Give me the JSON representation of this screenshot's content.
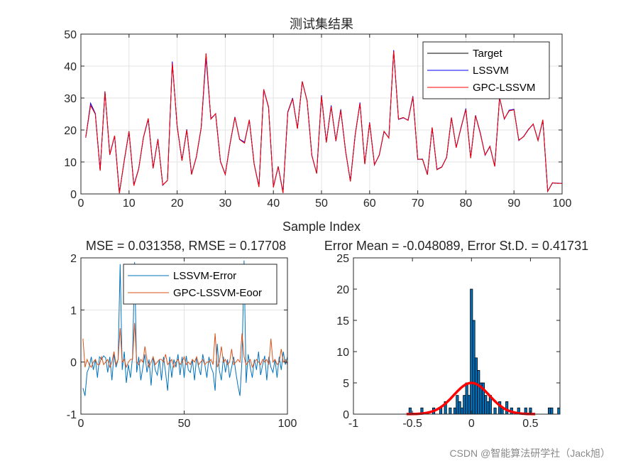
{
  "chart_data": [
    {
      "type": "line",
      "title": "测试集结果",
      "xlabel": "Sample Index",
      "ylabel": "",
      "xlim": [
        0,
        100
      ],
      "ylim": [
        0,
        50
      ],
      "xticks": [
        "0",
        "10",
        "20",
        "30",
        "40",
        "50",
        "60",
        "70",
        "80",
        "90",
        "100"
      ],
      "yticks": [
        "0",
        "10",
        "20",
        "30",
        "40",
        "50"
      ],
      "grid": true,
      "legend_position": "top-right",
      "x": [
        1,
        2,
        3,
        4,
        5,
        6,
        7,
        8,
        9,
        10,
        11,
        12,
        13,
        14,
        15,
        16,
        17,
        18,
        19,
        20,
        21,
        22,
        23,
        24,
        25,
        26,
        27,
        28,
        29,
        30,
        31,
        32,
        33,
        34,
        35,
        36,
        37,
        38,
        39,
        40,
        41,
        42,
        43,
        44,
        45,
        46,
        47,
        48,
        49,
        50,
        51,
        52,
        53,
        54,
        55,
        56,
        57,
        58,
        59,
        60,
        61,
        62,
        63,
        64,
        65,
        66,
        67,
        68,
        69,
        70,
        71,
        72,
        73,
        74,
        75,
        76,
        77,
        78,
        79,
        80,
        81,
        82,
        83,
        84,
        85,
        86,
        87,
        88,
        89,
        90,
        91,
        92,
        93,
        94,
        95,
        96,
        97,
        98,
        99,
        100
      ],
      "series": [
        {
          "name": "Target",
          "color": "#000000",
          "values": [
            17.7,
            27.8,
            25.0,
            7.3,
            32.0,
            12.3,
            18.2,
            0.2,
            10.4,
            19.6,
            2.6,
            7.8,
            17.7,
            23.6,
            8.0,
            17.1,
            2.8,
            4.2,
            41.0,
            21.3,
            10.4,
            20.0,
            6.1,
            11.6,
            20.8,
            43.8,
            23.4,
            25.1,
            10.2,
            6.1,
            15.8,
            24.0,
            17.0,
            15.9,
            23.2,
            9.3,
            2.2,
            32.7,
            27.2,
            2.1,
            8.6,
            0.3,
            25.5,
            29.8,
            20.4,
            35.2,
            29.1,
            12.1,
            6.4,
            30.7,
            16.1,
            27.4,
            16.6,
            26.2,
            13.5,
            3.9,
            18.5,
            28.4,
            9.3,
            22.2,
            9.1,
            12.2,
            19.6,
            17.5,
            44.7,
            23.4,
            23.9,
            23.0,
            30.4,
            10.9,
            10.8,
            6.0,
            20.8,
            7.6,
            8.4,
            11.5,
            23.9,
            14.5,
            20.8,
            26.5,
            11.2,
            24.5,
            19.0,
            12.2,
            14.9,
            8.6,
            30.1,
            23.5,
            26.0,
            26.4,
            16.8,
            17.9,
            20.1,
            21.9,
            16.7,
            23.2,
            0.8,
            3.5,
            3.3,
            3.3
          ]
        },
        {
          "name": "LSSVM",
          "color": "#0000ff",
          "values": [
            17.6,
            28.4,
            25.2,
            7.4,
            32.1,
            12.2,
            18.1,
            0.4,
            10.2,
            19.5,
            2.8,
            7.9,
            17.6,
            23.4,
            8.1,
            17.2,
            2.7,
            4.3,
            41.4,
            21.1,
            10.5,
            20.2,
            6.3,
            11.5,
            20.7,
            42.7,
            23.6,
            25.0,
            10.1,
            6.2,
            15.7,
            24.1,
            17.1,
            16.2,
            23.1,
            9.4,
            2.3,
            32.6,
            27.0,
            2.2,
            8.5,
            0.5,
            25.7,
            30.0,
            20.5,
            35.1,
            29.2,
            12.0,
            6.5,
            30.9,
            16.2,
            27.7,
            16.5,
            26.5,
            13.4,
            4.1,
            18.6,
            28.6,
            9.4,
            22.4,
            9.2,
            12.1,
            19.5,
            17.6,
            45.0,
            23.3,
            23.8,
            23.1,
            30.6,
            10.8,
            10.9,
            6.2,
            20.7,
            7.7,
            8.5,
            11.4,
            23.8,
            14.6,
            20.6,
            26.7,
            11.3,
            24.6,
            19.2,
            12.1,
            14.8,
            8.7,
            30.2,
            23.4,
            26.2,
            26.5,
            16.7,
            18.0,
            20.2,
            21.8,
            16.8,
            23.1,
            0.9,
            3.4,
            3.4,
            3.3
          ]
        },
        {
          "name": "GPC-LSSVM",
          "color": "#ff0000",
          "values": [
            17.7,
            27.7,
            25.0,
            7.3,
            32.0,
            12.3,
            18.2,
            0.2,
            10.4,
            19.6,
            2.6,
            7.8,
            17.7,
            23.6,
            8.0,
            17.1,
            2.8,
            4.2,
            40.9,
            21.3,
            10.4,
            20.0,
            6.1,
            11.6,
            20.8,
            44.0,
            23.4,
            25.1,
            10.2,
            6.1,
            15.8,
            24.0,
            17.0,
            15.9,
            23.2,
            9.3,
            2.2,
            32.7,
            27.2,
            2.1,
            8.6,
            0.3,
            25.5,
            29.8,
            20.4,
            35.2,
            29.1,
            12.1,
            6.4,
            30.6,
            16.1,
            27.3,
            16.6,
            26.2,
            13.5,
            3.9,
            18.5,
            28.3,
            9.3,
            22.2,
            9.1,
            12.2,
            19.6,
            17.5,
            44.6,
            23.4,
            23.9,
            23.0,
            30.4,
            10.9,
            10.8,
            6.0,
            20.8,
            7.6,
            8.4,
            11.5,
            23.9,
            14.5,
            20.8,
            26.4,
            11.2,
            24.5,
            19.0,
            12.2,
            14.9,
            8.6,
            30.1,
            23.5,
            26.0,
            26.3,
            16.8,
            17.9,
            20.1,
            21.9,
            16.7,
            23.2,
            0.8,
            3.5,
            3.3,
            3.3
          ]
        }
      ]
    },
    {
      "type": "line",
      "title": "MSE = 0.031358, RMSE = 0.17708",
      "xlim": [
        0,
        100
      ],
      "ylim": [
        -1,
        2
      ],
      "xticks": [
        "0",
        "50",
        "100"
      ],
      "yticks": [
        "-1",
        "0",
        "1",
        "2"
      ],
      "grid": true,
      "legend_position": "top-right",
      "series": [
        {
          "name": "LSSVM-Error",
          "color": "#0072bd",
          "values": [
            -0.5,
            -0.65,
            -0.2,
            -0.1,
            0.1,
            -0.15,
            0.05,
            -0.3,
            0.1,
            0.05,
            0.12,
            0.08,
            -0.2,
            0.1,
            -0.35,
            0.15,
            -0.1,
            0.05,
            1.88,
            -0.15,
            0.2,
            -0.4,
            -0.05,
            -0.3,
            0.1,
            1.92,
            -0.2,
            0.1,
            -0.35,
            -0.1,
            0.15,
            -0.2,
            0.05,
            -0.45,
            0.1,
            -0.15,
            -0.25,
            0.05,
            -0.35,
            0.1,
            -0.2,
            -0.55,
            0.1,
            -0.3,
            0.05,
            -0.1,
            0.15,
            -0.25,
            0.1,
            -0.3,
            0.12,
            -0.15,
            -0.2,
            0.05,
            -0.35,
            0.1,
            -0.1,
            -0.25,
            0.15,
            -0.05,
            -0.3,
            0.1,
            -0.1,
            -0.2,
            -0.55,
            0.35,
            -0.15,
            -0.35,
            0.1,
            -0.2,
            0.05,
            -0.3,
            -0.1,
            0.1,
            -0.2,
            -0.45,
            -0.65,
            0.05,
            1.95,
            -0.4,
            0.15,
            -0.1,
            -0.3,
            0.05,
            -0.15,
            0.2,
            -0.25,
            -0.05,
            0.12,
            -0.35,
            0.1,
            -0.1,
            -0.2,
            0.05,
            -0.3,
            0.1,
            -0.15,
            0.2,
            -0.05,
            0.1
          ]
        },
        {
          "name": "GPC-LSSVM-Eoor",
          "color": "#d95319",
          "values": [
            0.45,
            -0.1,
            0.05,
            -0.05,
            -0.1,
            0.0,
            0.05,
            -0.05,
            -0.05,
            0.1,
            -0.05,
            0.0,
            0.05,
            -0.1,
            0.0,
            0.2,
            -0.05,
            0.05,
            0.65,
            0.0,
            0.05,
            -0.1,
            0.0,
            0.05,
            0.05,
            0.75,
            0.0,
            -0.05,
            0.05,
            0.0,
            0.3,
            0.05,
            -0.1,
            0.0,
            0.1,
            -0.05,
            0.0,
            0.05,
            0.05,
            0.0,
            0.15,
            -0.05,
            0.0,
            0.05,
            -0.1,
            0.0,
            0.05,
            -0.05,
            0.0,
            0.1,
            -0.05,
            0.0,
            -0.05,
            0.05,
            0.0,
            0.1,
            -0.05,
            0.0,
            0.05,
            -0.05,
            0.0,
            0.0,
            0.05,
            -0.05,
            0.55,
            -0.1,
            0.0,
            0.3,
            0.0,
            0.05,
            -0.05,
            0.0,
            0.25,
            -0.05,
            0.0,
            0.05,
            0.0,
            0.55,
            0.1,
            -0.05,
            0.0,
            0.05,
            -0.1,
            0.0,
            0.05,
            0.0,
            -0.05,
            0.05,
            0.0,
            0.05,
            -0.05,
            0.45,
            0.0,
            0.05,
            -0.05,
            0.0,
            0.25,
            0.0,
            0.05,
            -0.05
          ]
        }
      ]
    },
    {
      "type": "bar",
      "title": "Error Mean = -0.048089, Error St.D. = 0.41731",
      "xlim": [
        -1,
        0.75
      ],
      "ylim": [
        0,
        25
      ],
      "xticks": [
        "-1",
        "-0.5",
        "0",
        "0.5"
      ],
      "yticks": [
        "0",
        "5",
        "10",
        "15",
        "20",
        "25"
      ],
      "bar_color": "#0072bd",
      "fit_color": "#ff0000",
      "bins": [
        -0.52,
        -0.42,
        -0.32,
        -0.26,
        -0.22,
        -0.18,
        -0.14,
        -0.12,
        -0.1,
        -0.08,
        -0.06,
        -0.04,
        -0.02,
        0.0,
        0.02,
        0.04,
        0.06,
        0.08,
        0.1,
        0.12,
        0.14,
        0.16,
        0.2,
        0.24,
        0.26,
        0.3,
        0.34,
        0.4,
        0.46,
        0.5,
        0.66,
        0.68,
        0.74
      ],
      "values": [
        1,
        1,
        1,
        1,
        2,
        1,
        1,
        3,
        2,
        1,
        3,
        5,
        3,
        20,
        15,
        9,
        7,
        5,
        5,
        3,
        2,
        3,
        1,
        2,
        1,
        2,
        1,
        1,
        1,
        1,
        1,
        1,
        1
      ],
      "fit_curve": {
        "mean": 0.0,
        "std": 0.15,
        "peak": 5
      }
    }
  ],
  "watermark": "CSDN @智能算法研学社（Jack旭）"
}
